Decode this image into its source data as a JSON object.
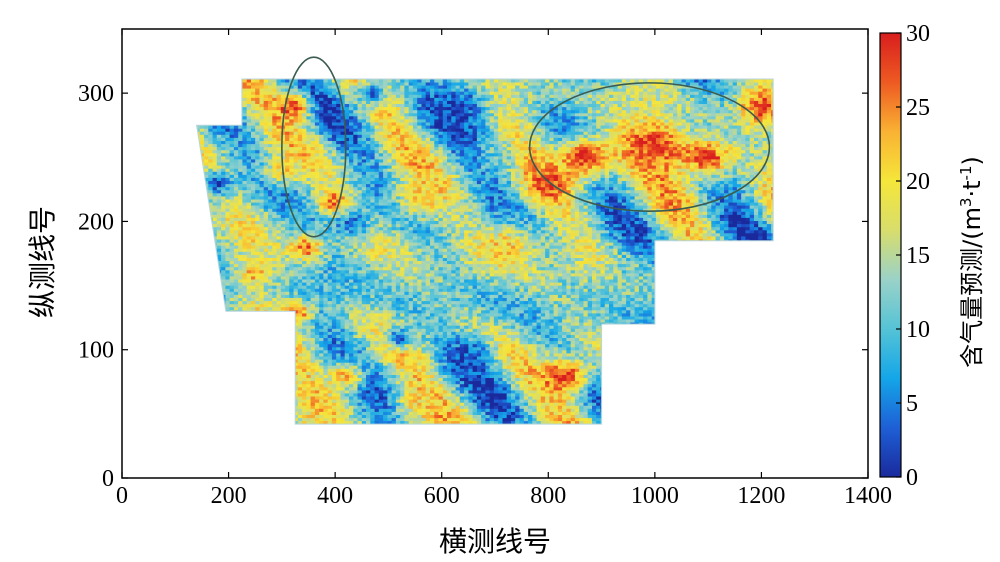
{
  "chart_data": {
    "type": "heatmap",
    "xlabel": "横测线号",
    "ylabel": "纵测线号",
    "xlim": [
      0,
      1400
    ],
    "ylim": [
      0,
      350
    ],
    "x_ticks": [
      0,
      200,
      400,
      600,
      800,
      1000,
      1200,
      1400
    ],
    "y_ticks": [
      0,
      100,
      200,
      300
    ],
    "colorbar": {
      "title_main": "含气量预测/(m",
      "title_sup1": "3",
      "title_mid": "·t",
      "title_sup2": "-1",
      "title_end": ")",
      "range": [
        0,
        30
      ],
      "ticks": [
        0,
        5,
        10,
        15,
        20,
        25,
        30
      ],
      "colors": [
        "#1a2a9c",
        "#1e5fd6",
        "#14a6e8",
        "#55c3d6",
        "#9ad2c8",
        "#d8dd6c",
        "#f5e63a",
        "#f9b233",
        "#ee5a22",
        "#d81e1e"
      ]
    },
    "survey_outline": [
      [
        140,
        275
      ],
      [
        225,
        275
      ],
      [
        225,
        311
      ],
      [
        1222,
        311
      ],
      [
        1222,
        185
      ],
      [
        1000,
        185
      ],
      [
        1000,
        120
      ],
      [
        900,
        120
      ],
      [
        900,
        42
      ],
      [
        325,
        42
      ],
      [
        325,
        130
      ],
      [
        195,
        130
      ]
    ],
    "highlight_regions": [
      {
        "type": "ellipse",
        "cx": 360,
        "cy": 258,
        "rx": 60,
        "ry": 70
      },
      {
        "type": "ellipse",
        "cx": 990,
        "cy": 258,
        "rx": 225,
        "ry": 50
      }
    ],
    "anomalies": [
      {
        "x": 630,
        "y": 290,
        "value": 2,
        "size": 60
      },
      {
        "x": 650,
        "y": 95,
        "value": 2,
        "size": 45
      },
      {
        "x": 180,
        "y": 230,
        "value": 3,
        "size": 30
      },
      {
        "x": 430,
        "y": 200,
        "value": 4,
        "size": 40
      },
      {
        "x": 520,
        "y": 110,
        "value": 3,
        "size": 25
      },
      {
        "x": 470,
        "y": 300,
        "value": 4,
        "size": 30
      },
      {
        "x": 320,
        "y": 290,
        "value": 28,
        "size": 35
      },
      {
        "x": 345,
        "y": 180,
        "value": 27,
        "size": 30
      },
      {
        "x": 400,
        "y": 215,
        "value": 28,
        "size": 30
      },
      {
        "x": 330,
        "y": 130,
        "value": 28,
        "size": 25
      },
      {
        "x": 800,
        "y": 230,
        "value": 28,
        "size": 35
      },
      {
        "x": 870,
        "y": 250,
        "value": 29,
        "size": 55
      },
      {
        "x": 1000,
        "y": 260,
        "value": 29,
        "size": 60
      },
      {
        "x": 1100,
        "y": 250,
        "value": 28,
        "size": 50
      },
      {
        "x": 1200,
        "y": 290,
        "value": 29,
        "size": 40
      },
      {
        "x": 830,
        "y": 80,
        "value": 29,
        "size": 45
      },
      {
        "x": 560,
        "y": 220,
        "value": 22,
        "size": 50
      },
      {
        "x": 720,
        "y": 180,
        "value": 21,
        "size": 60
      },
      {
        "x": 300,
        "y": 240,
        "value": 21,
        "size": 35
      },
      {
        "x": 250,
        "y": 160,
        "value": 24,
        "size": 30
      },
      {
        "x": 420,
        "y": 80,
        "value": 22,
        "size": 40
      },
      {
        "x": 560,
        "y": 60,
        "value": 21,
        "size": 40
      },
      {
        "x": 950,
        "y": 160,
        "value": 12,
        "size": 45
      },
      {
        "x": 700,
        "y": 250,
        "value": 11,
        "size": 40
      }
    ]
  }
}
